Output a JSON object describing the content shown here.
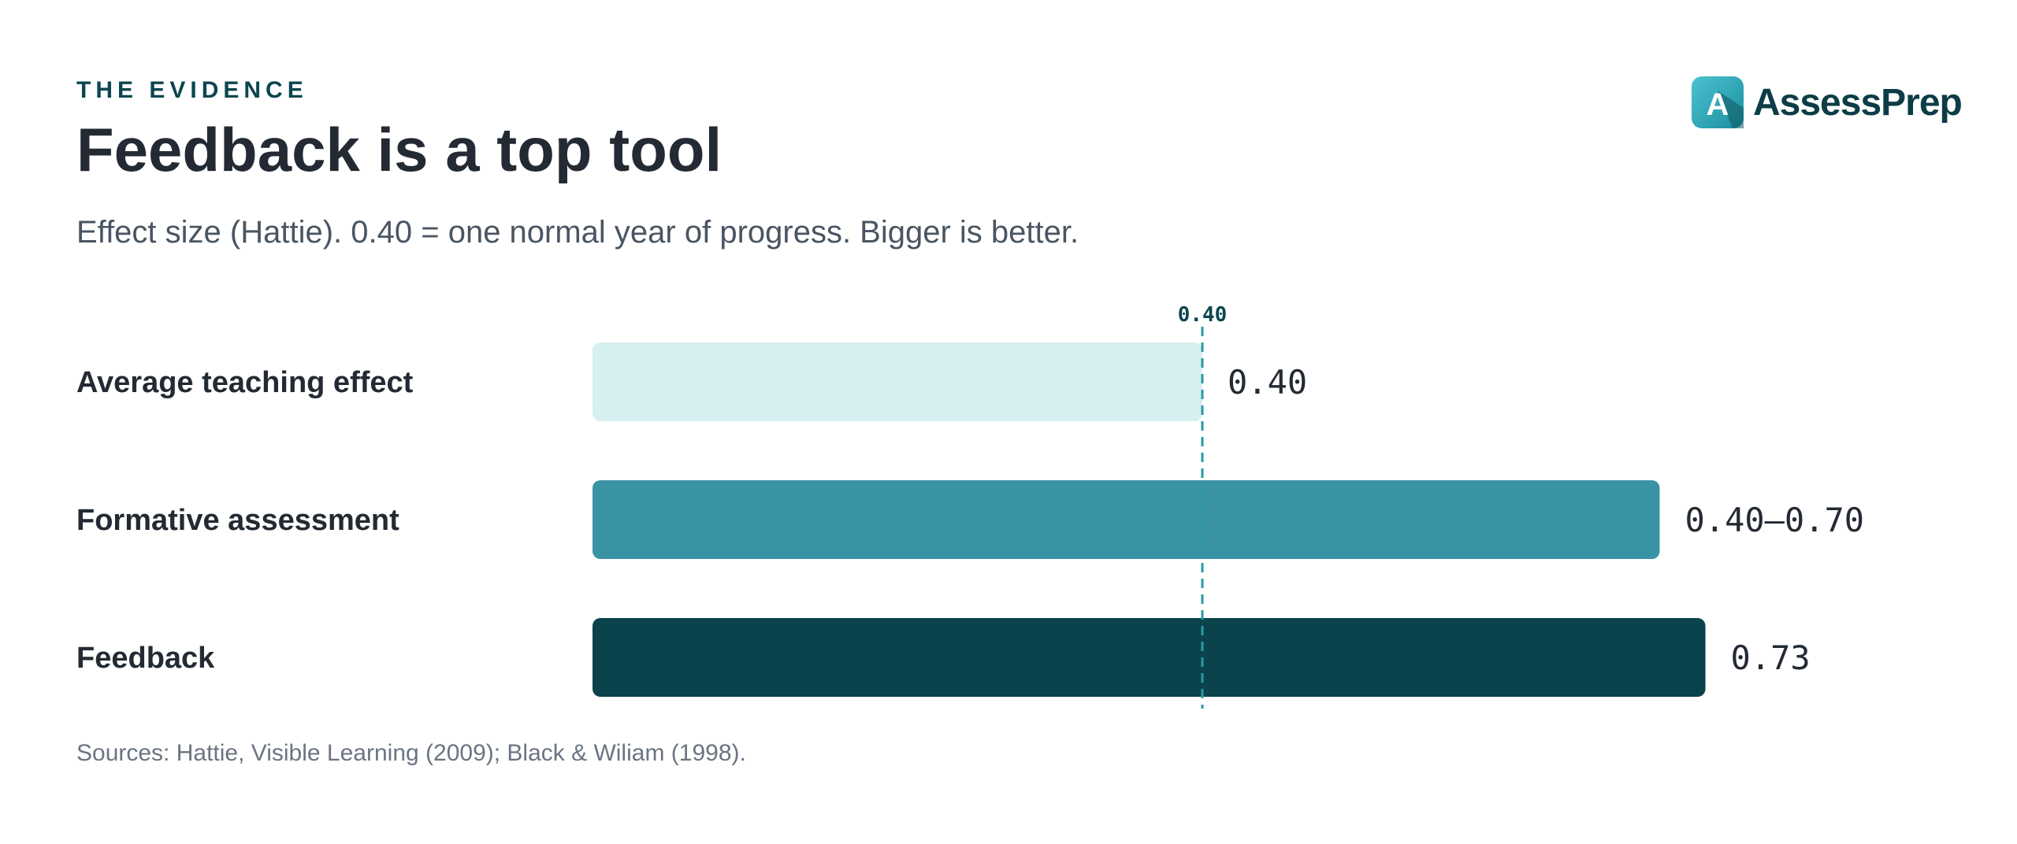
{
  "eyebrow": "THE EVIDENCE",
  "title": "Feedback is a top tool",
  "subtitle": "Effect size (Hattie). 0.40 = one normal year of progress. Bigger is better.",
  "logo": {
    "text": "AssessPrep",
    "letter": "A",
    "icon": "assessprep-logo-icon"
  },
  "sources": "Sources: Hattie, Visible Learning (2009); Black & Wiliam (1998).",
  "colors": {
    "light": "#d6eff1",
    "mid": "#3a93a4",
    "dark": "#0a434c",
    "reference": "#2a9aa4"
  },
  "chart_data": {
    "type": "bar",
    "orientation": "horizontal",
    "categories": [
      "Average teaching effect",
      "Formative assessment",
      "Feedback"
    ],
    "values": [
      0.4,
      0.7,
      0.73
    ],
    "value_labels": [
      "0.40",
      "0.40–0.70",
      "0.73"
    ],
    "bar_colors": [
      "#d6eff1",
      "#3a93a4",
      "#0a434c"
    ],
    "reference_line": {
      "value": 0.4,
      "label": "0.40"
    },
    "xlim": [
      0,
      0.8
    ],
    "grid": false
  }
}
